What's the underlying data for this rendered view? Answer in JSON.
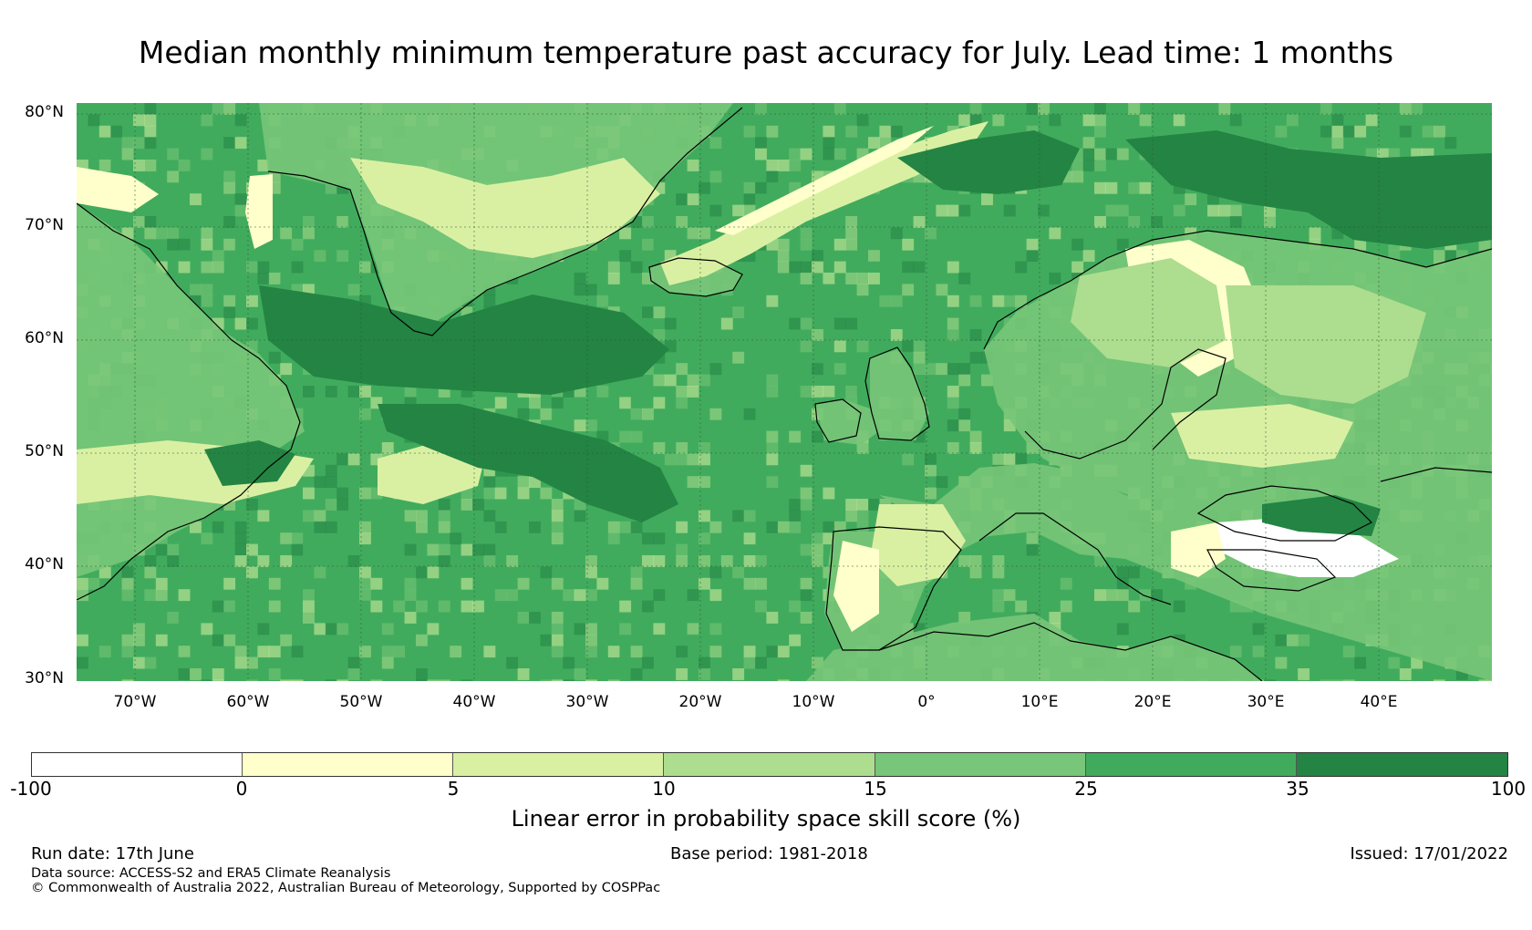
{
  "title": "Median monthly minimum temperature past accuracy for July. Lead time: 1 months",
  "map": {
    "lat_labels": [
      "80°N",
      "70°N",
      "60°N",
      "50°N",
      "40°N",
      "30°N"
    ],
    "lon_labels": [
      "70°W",
      "60°W",
      "50°W",
      "40°W",
      "30°W",
      "20°W",
      "10°W",
      "0°",
      "10°E",
      "20°E",
      "30°E",
      "40°E"
    ],
    "colors": {
      "ocean_base": "#41ab5d",
      "land_base": "#78c679"
    }
  },
  "colorbar": {
    "ticks": [
      "-100",
      "0",
      "5",
      "10",
      "15",
      "25",
      "35",
      "100"
    ],
    "colors": [
      "#ffffff",
      "#ffffcc",
      "#d9f0a3",
      "#addd8e",
      "#78c679",
      "#41ab5d",
      "#238443"
    ],
    "label": "Linear error in probability space skill score (%)"
  },
  "footer": {
    "run_date": "Run date: 17th June",
    "base_period": "Base period: 1981-2018",
    "issued": "Issued: 17/01/2022",
    "data_source": "Data source: ACCESS-S2 and ERA5 Climate Reanalysis",
    "copyright": "© Commonwealth of Australia 2022, Australian Bureau of Meteorology, Supported by COSPPac"
  }
}
